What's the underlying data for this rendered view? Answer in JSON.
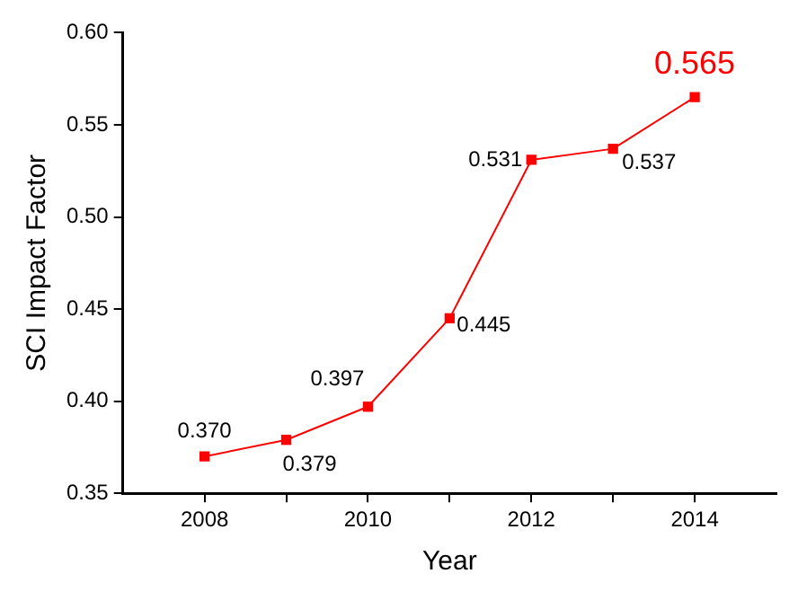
{
  "chart_data": {
    "type": "line",
    "xlabel": "Year",
    "ylabel": "SCI Impact Factor",
    "x": [
      2008,
      2009,
      2010,
      2011,
      2012,
      2013,
      2014
    ],
    "series": [
      {
        "color": "#ff0000",
        "values": [
          0.37,
          0.379,
          0.397,
          0.445,
          0.531,
          0.537,
          0.565
        ],
        "value_labels": [
          "0.370",
          "0.379",
          "0.397",
          "0.445",
          "0.531",
          "0.537",
          "0.565"
        ]
      }
    ],
    "xlim": [
      2007,
      2015
    ],
    "xticks": [
      2008,
      {
        "value": 2009,
        "label": null
      },
      2010,
      {
        "value": 2011,
        "label": null
      },
      2012,
      {
        "value": 2013,
        "label": null
      },
      2014
    ],
    "ylim": [
      0.35,
      0.6
    ],
    "yticks": [
      {
        "value": 0.35,
        "label": "0.35"
      },
      {
        "value": 0.4,
        "label": "0.40"
      },
      {
        "value": 0.45,
        "label": "0.45"
      },
      {
        "value": 0.5,
        "label": "0.50"
      },
      {
        "value": 0.55,
        "label": "0.55"
      },
      {
        "value": 0.6,
        "label": "0.60"
      }
    ],
    "grid": false,
    "legend": false,
    "marker": "square",
    "line_style": "solid"
  }
}
